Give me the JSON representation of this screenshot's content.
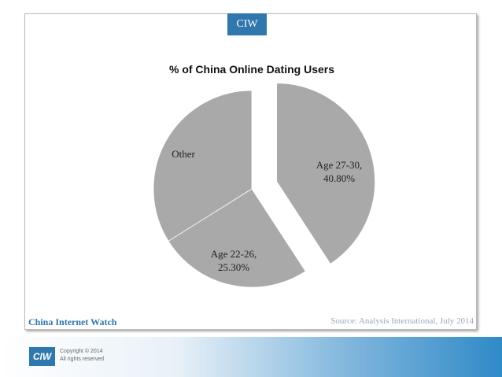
{
  "brand_tag": "CIW",
  "footer": {
    "site_name": "China Internet Watch",
    "source": "Source: Analysis International, July 2014",
    "logo_text": "CIW",
    "copyright_line1": "Copyright © 2014",
    "copyright_line2": "All rights reserved"
  },
  "colors": {
    "slice": "#a9a9a9",
    "accent": "#2f77ad"
  },
  "chart_data": {
    "type": "pie",
    "title": "% of China Online Dating Users",
    "slices": [
      {
        "label": "Age 27-30,",
        "value_label": "40.80%",
        "value": 40.8,
        "exploded": true
      },
      {
        "label": "Age 22-26,",
        "value_label": "25.30%",
        "value": 25.3,
        "exploded": false
      },
      {
        "label": "Other",
        "value_label": "",
        "value": 33.9,
        "exploded": false
      }
    ]
  }
}
